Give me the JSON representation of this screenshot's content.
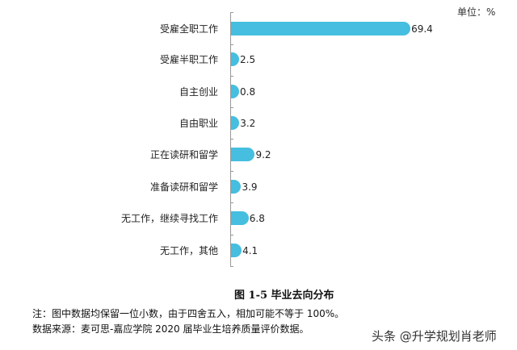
{
  "unit_label": "单位：%",
  "caption": "图 1-5 毕业去向分布",
  "notes": [
    "注：图中数据均保留一位小数，由于四舍五入，相加可能不等于 100%。",
    "数据来源：麦可思-嘉应学院 2020 届毕业生培养质量评价数据。"
  ],
  "watermark": "头条 @升学规划肖老师",
  "colors": {
    "bar": "#45bedf",
    "axis": "#999999"
  },
  "chart_data": {
    "type": "bar",
    "orientation": "horizontal",
    "title": "图 1-5 毕业去向分布",
    "unit": "%",
    "categories": [
      "受雇全职工作",
      "受雇半职工作",
      "自主创业",
      "自由职业",
      "正在读研和留学",
      "准备读研和留学",
      "无工作，继续寻找工作",
      "无工作，其他"
    ],
    "values": [
      69.4,
      2.5,
      0.8,
      3.2,
      9.2,
      3.9,
      6.8,
      4.1
    ],
    "labels": [
      "69.4",
      "2.5",
      "0.8",
      "3.2",
      "9.2",
      "3.9",
      "6.8",
      "4.1"
    ],
    "xlabel": "",
    "ylabel": "",
    "grid": false,
    "legend": null
  }
}
